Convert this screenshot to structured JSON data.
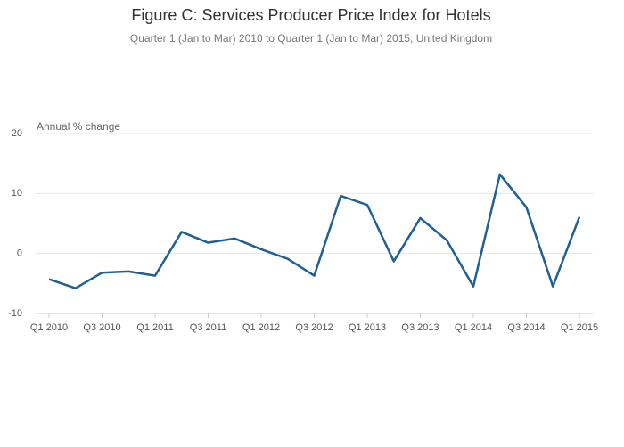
{
  "chart_data": {
    "type": "line",
    "title": "Figure C: Services Producer Price Index for Hotels",
    "subtitle": "Quarter 1 (Jan to Mar) 2010 to Quarter 1 (Jan to Mar) 2015, United Kingdom",
    "y_label": "Annual % change",
    "categories": [
      "Q1 2010",
      null,
      "Q3 2010",
      null,
      "Q1 2011",
      null,
      "Q3 2011",
      null,
      "Q1 2012",
      null,
      "Q3 2012",
      null,
      "Q1 2013",
      null,
      "Q3 2013",
      null,
      "Q1 2014",
      null,
      "Q3 2014",
      null,
      "Q1 2015"
    ],
    "values": [
      -4.3,
      -5.8,
      -3.2,
      -3.0,
      -3.7,
      3.6,
      1.8,
      2.5,
      0.7,
      -0.9,
      -3.7,
      9.6,
      8.1,
      -1.3,
      5.9,
      2.2,
      -5.5,
      13.2,
      7.7,
      -5.5,
      6.1
    ],
    "color": "#206095",
    "ylim": [
      -10,
      20
    ],
    "yticks": [
      -10,
      0,
      10,
      20
    ],
    "grid": true
  }
}
